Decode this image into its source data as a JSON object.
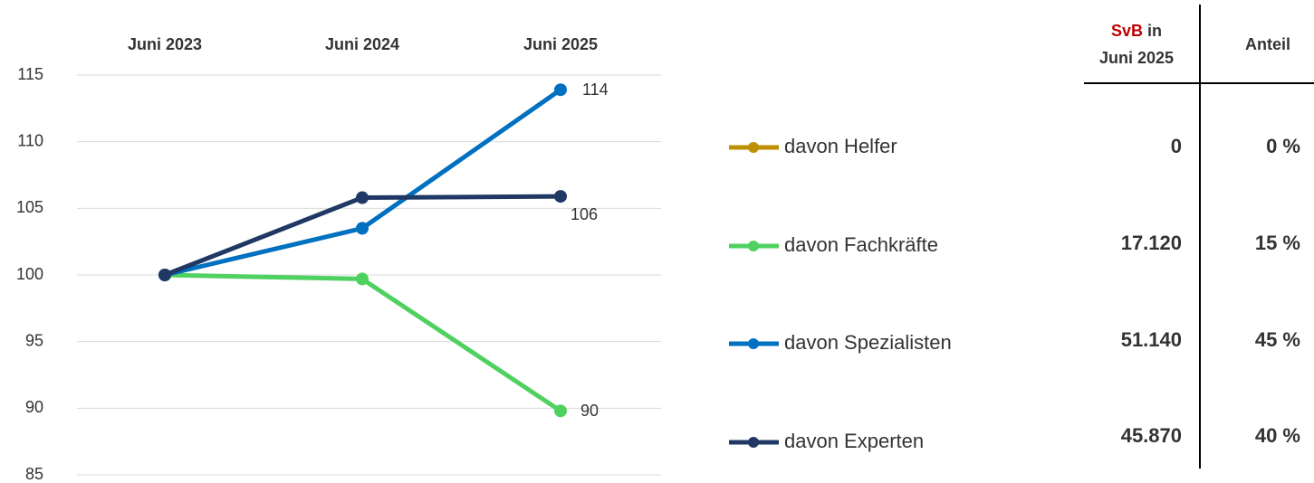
{
  "chart_data": {
    "type": "line",
    "categories": [
      "Juni 2023",
      "Juni 2024",
      "Juni 2025"
    ],
    "ylim": [
      85,
      115
    ],
    "yticks": [
      85,
      90,
      95,
      100,
      105,
      110,
      115
    ],
    "grid": true,
    "series": [
      {
        "name": "davon Helfer",
        "color": "#bf9000",
        "values": [
          null,
          null,
          null
        ]
      },
      {
        "name": "davon Fachkräfte",
        "color": "#4fd160",
        "values": [
          100,
          99.7,
          89.8
        ],
        "value_labels": [
          null,
          null,
          "90"
        ]
      },
      {
        "name": "davon Spezialisten",
        "color": "#0070c0",
        "values": [
          100,
          103.5,
          113.9
        ],
        "value_labels": [
          null,
          null,
          "114"
        ]
      },
      {
        "name": "davon Experten",
        "color": "#1f3864",
        "values": [
          100,
          105.8,
          105.9
        ],
        "value_labels": [
          null,
          null,
          "106"
        ]
      }
    ]
  },
  "table": {
    "header": {
      "svb": "SvB",
      "in": "in",
      "line2": "Juni 2025",
      "share": "Anteil"
    },
    "rows": [
      {
        "svb": "0",
        "share": "0 %",
        "color": "#bf9000"
      },
      {
        "svb": "17.120",
        "share": "15 %",
        "color": "#00b050"
      },
      {
        "svb": "51.140",
        "share": "45 %",
        "color": "#0062ac"
      },
      {
        "svb": "45.870",
        "share": "40 %",
        "color": "#1f3864"
      }
    ]
  }
}
